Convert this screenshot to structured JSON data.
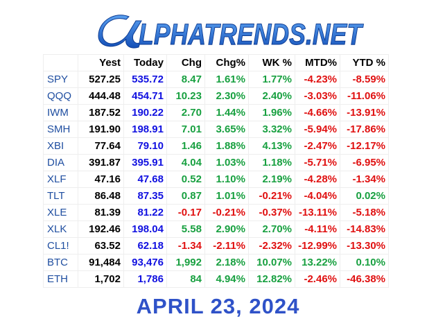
{
  "header": {
    "logo": "LPHATRENDS.NET"
  },
  "table": {
    "columns": [
      "Yest",
      "Today",
      "Chg",
      "Chg%",
      "WK %",
      "MTD%",
      "YTD %"
    ],
    "rows": [
      [
        "SPY",
        "527.25",
        "535.72",
        "8.47",
        "1.61%",
        "1.77%",
        "-4.23%",
        "-8.59%"
      ],
      [
        "QQQ",
        "444.48",
        "454.71",
        "10.23",
        "2.30%",
        "2.40%",
        "-3.03%",
        "-11.06%"
      ],
      [
        "IWM",
        "187.52",
        "190.22",
        "2.70",
        "1.44%",
        "1.96%",
        "-4.66%",
        "-13.91%"
      ],
      [
        "SMH",
        "191.90",
        "198.91",
        "7.01",
        "3.65%",
        "3.32%",
        "-5.94%",
        "-17.86%"
      ],
      [
        "XBI",
        "77.64",
        "79.10",
        "1.46",
        "1.88%",
        "4.13%",
        "-2.47%",
        "-12.17%"
      ],
      [
        "DIA",
        "391.87",
        "395.91",
        "4.04",
        "1.03%",
        "1.18%",
        "-5.71%",
        "-6.95%"
      ],
      [
        "XLF",
        "47.16",
        "47.68",
        "0.52",
        "1.10%",
        "2.19%",
        "-4.28%",
        "-1.34%"
      ],
      [
        "TLT",
        "86.48",
        "87.35",
        "0.87",
        "1.01%",
        "-0.21%",
        "-4.04%",
        "0.02%"
      ],
      [
        "XLE",
        "81.39",
        "81.22",
        "-0.17",
        "-0.21%",
        "-0.37%",
        "-13.11%",
        "-5.18%"
      ],
      [
        "XLK",
        "192.46",
        "198.04",
        "5.58",
        "2.90%",
        "2.70%",
        "-4.11%",
        "-14.83%"
      ],
      [
        "CL1!",
        "63.52",
        "62.18",
        "-1.34",
        "-2.11%",
        "-2.32%",
        "-12.99%",
        "-13.30%"
      ],
      [
        "BTC",
        "91,484",
        "93,476",
        "1,992",
        "2.18%",
        "10.07%",
        "13.22%",
        "0.10%"
      ],
      [
        "ETH",
        "1,702",
        "1,786",
        "84",
        "4.94%",
        "12.82%",
        "-2.46%",
        "-46.38%"
      ]
    ]
  },
  "footer": {
    "date": "APRIL 23, 2024"
  }
}
